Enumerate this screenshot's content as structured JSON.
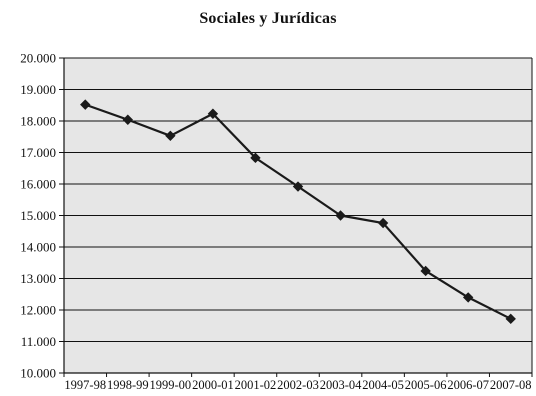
{
  "chart_data": {
    "type": "line",
    "title": "Sociales y Jurídicas",
    "categories": [
      "1997-98",
      "1998-99",
      "1999-00",
      "2000-01",
      "2001-02",
      "2002-03",
      "2003-04",
      "2004-05",
      "2005-06",
      "2006-07",
      "2007-08"
    ],
    "series": [
      {
        "values": [
          18520,
          18040,
          17530,
          18230,
          16830,
          15920,
          15000,
          14760,
          13240,
          12400,
          11720
        ]
      }
    ],
    "ylim": [
      10000,
      20000
    ],
    "yticks": [
      "10.000",
      "11.000",
      "12.000",
      "13.000",
      "14.000",
      "15.000",
      "16.000",
      "17.000",
      "18.000",
      "19.000",
      "20.000"
    ],
    "ytick_values": [
      10000,
      11000,
      12000,
      13000,
      14000,
      15000,
      16000,
      17000,
      18000,
      19000,
      20000
    ],
    "grid": true,
    "legend": "none",
    "colors": {
      "plot_background": "#e6e6e6",
      "line": "#1a1a1a",
      "marker": "#1a1a1a",
      "grid": "#111111"
    }
  }
}
